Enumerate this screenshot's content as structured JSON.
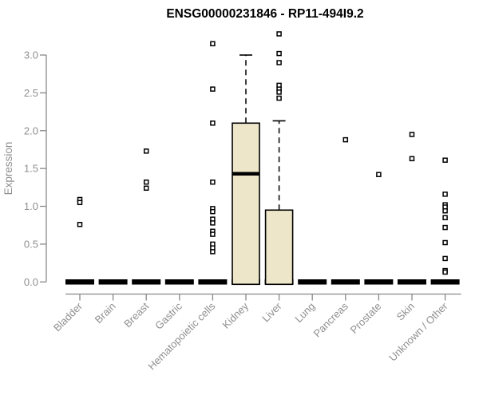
{
  "title": "ENSG00000231846 - RP11-494I9.2",
  "colors": {
    "box_fill": "#ede6c9",
    "box_border": "#000000",
    "median": "#000000",
    "zero_bar": "#000000",
    "outlier_stroke": "#000000",
    "outlier_fill": "#ffffff",
    "axis_line": "#888888",
    "axis_text": "#8f8f8f",
    "title_text": "#000000",
    "background": "#ffffff"
  },
  "chart_data": {
    "type": "boxplot",
    "title": "ENSG00000231846 - RP11-494I9.2",
    "xlabel": "",
    "ylabel": "Expression",
    "ylim": [
      0.0,
      3.3
    ],
    "yticks": [
      0.0,
      0.5,
      1.0,
      1.5,
      2.0,
      2.5,
      3.0
    ],
    "grid": false,
    "legend": false,
    "categories": [
      "Bladder",
      "Brain",
      "Breast",
      "Gastric",
      "Hematopoietic cells",
      "Kidney",
      "Liver",
      "Lung",
      "Pancreas",
      "Prostate",
      "Skin",
      "Unknown / Other"
    ],
    "series": [
      {
        "name": "Bladder",
        "q1": 0,
        "median": 0,
        "q3": 0,
        "whisker_low": 0,
        "whisker_high": 0,
        "outliers": [
          1.09,
          1.05,
          0.76
        ]
      },
      {
        "name": "Brain",
        "q1": 0,
        "median": 0,
        "q3": 0,
        "whisker_low": 0,
        "whisker_high": 0,
        "outliers": []
      },
      {
        "name": "Breast",
        "q1": 0,
        "median": 0,
        "q3": 0,
        "whisker_low": 0,
        "whisker_high": 0,
        "outliers": [
          1.73,
          1.32,
          1.24
        ]
      },
      {
        "name": "Gastric",
        "q1": 0,
        "median": 0,
        "q3": 0,
        "whisker_low": 0,
        "whisker_high": 0,
        "outliers": []
      },
      {
        "name": "Hematopoietic cells",
        "q1": 0,
        "median": 0,
        "q3": 0,
        "whisker_low": 0,
        "whisker_high": 0,
        "outliers": [
          3.15,
          2.55,
          2.1,
          1.32,
          0.97,
          0.93,
          0.83,
          0.78,
          0.67,
          0.63,
          0.5,
          0.45,
          0.4
        ]
      },
      {
        "name": "Kidney",
        "q1": 0,
        "median": 1.43,
        "q3": 2.1,
        "whisker_low": 0,
        "whisker_high": 3.0,
        "outliers": []
      },
      {
        "name": "Liver",
        "q1": 0,
        "median": 0,
        "q3": 0.95,
        "whisker_low": 0,
        "whisker_high": 2.13,
        "outliers": [
          3.28,
          3.02,
          2.9,
          2.6,
          2.55,
          2.51,
          2.43
        ]
      },
      {
        "name": "Lung",
        "q1": 0,
        "median": 0,
        "q3": 0,
        "whisker_low": 0,
        "whisker_high": 0,
        "outliers": []
      },
      {
        "name": "Pancreas",
        "q1": 0,
        "median": 0,
        "q3": 0,
        "whisker_low": 0,
        "whisker_high": 0,
        "outliers": [
          1.88
        ]
      },
      {
        "name": "Prostate",
        "q1": 0,
        "median": 0,
        "q3": 0,
        "whisker_low": 0,
        "whisker_high": 0,
        "outliers": [
          1.42
        ]
      },
      {
        "name": "Skin",
        "q1": 0,
        "median": 0,
        "q3": 0,
        "whisker_low": 0,
        "whisker_high": 0,
        "outliers": [
          1.95,
          1.63
        ]
      },
      {
        "name": "Unknown / Other",
        "q1": 0,
        "median": 0,
        "q3": 0,
        "whisker_low": 0,
        "whisker_high": 0,
        "outliers": [
          1.61,
          1.16,
          1.02,
          0.99,
          0.94,
          0.85,
          0.72,
          0.52,
          0.31,
          0.15,
          0.13
        ]
      }
    ]
  }
}
